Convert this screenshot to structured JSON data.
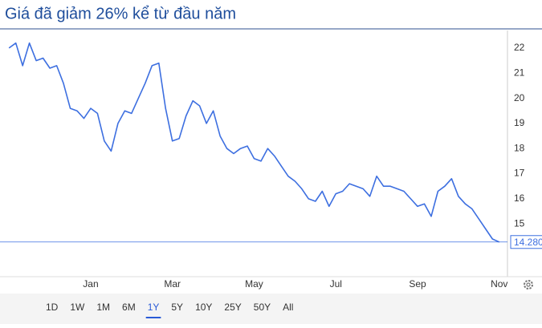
{
  "chart_data": {
    "type": "line",
    "title": "Giá đã giảm 26% kể từ đầu năm",
    "categories": [
      null,
      null,
      null,
      null,
      null,
      null,
      null,
      null,
      null,
      null,
      null,
      null,
      "Jan",
      null,
      null,
      null,
      null,
      null,
      null,
      null,
      null,
      null,
      null,
      null,
      "Mar",
      null,
      null,
      null,
      null,
      null,
      null,
      null,
      null,
      null,
      null,
      null,
      "May",
      null,
      null,
      null,
      null,
      null,
      null,
      null,
      null,
      null,
      null,
      null,
      "Jul",
      null,
      null,
      null,
      null,
      null,
      null,
      null,
      null,
      null,
      null,
      null,
      "Sep",
      null,
      null,
      null,
      null,
      null,
      null,
      null,
      null,
      null,
      null,
      null,
      "Nov"
    ],
    "values": [
      22.0,
      22.2,
      21.3,
      22.2,
      21.5,
      21.6,
      21.2,
      21.3,
      20.6,
      19.6,
      19.5,
      19.2,
      19.6,
      19.4,
      18.3,
      17.9,
      19.0,
      19.5,
      19.4,
      20.0,
      20.6,
      21.3,
      21.4,
      19.6,
      18.3,
      18.4,
      19.3,
      19.9,
      19.7,
      19.0,
      19.5,
      18.5,
      18.0,
      17.8,
      18.0,
      18.1,
      17.6,
      17.5,
      18.0,
      17.7,
      17.3,
      16.9,
      16.7,
      16.4,
      16.0,
      15.9,
      16.3,
      15.7,
      16.2,
      16.3,
      16.6,
      16.5,
      16.4,
      16.1,
      16.9,
      16.5,
      16.5,
      16.4,
      16.3,
      16.0,
      15.7,
      15.8,
      15.3,
      16.3,
      16.5,
      16.8,
      16.1,
      15.8,
      15.6,
      15.2,
      14.8,
      14.4,
      14.28
    ],
    "color": "#3d6fe0",
    "price_line": {
      "value": 14.28,
      "label": "14.280"
    },
    "ylim": [
      12.9,
      22.7
    ],
    "yticks": [
      15,
      16,
      17,
      18,
      19,
      20,
      21,
      22
    ],
    "grid": false,
    "range_buttons": [
      "1D",
      "1W",
      "1M",
      "6M",
      "1Y",
      "5Y",
      "10Y",
      "25Y",
      "50Y",
      "All"
    ],
    "selected_range_index": 4
  }
}
